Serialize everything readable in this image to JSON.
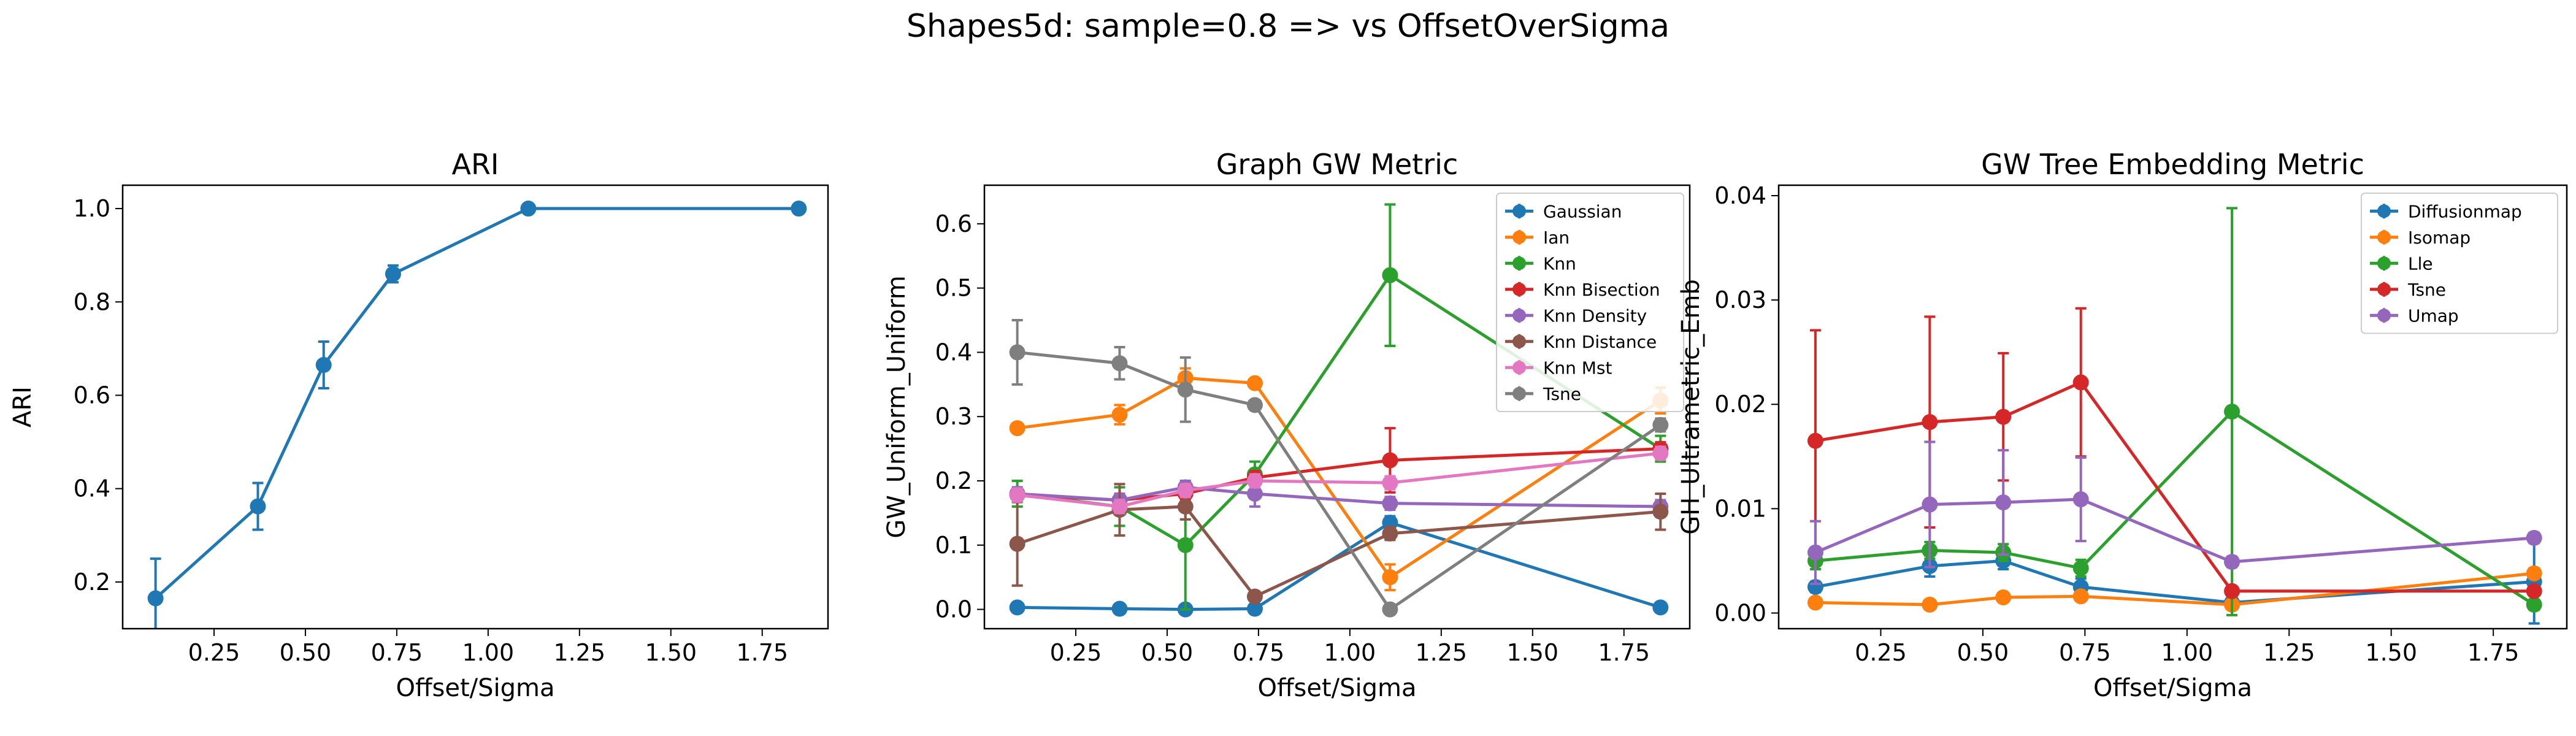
{
  "figure": {
    "suptitle": "Shapes5d: sample=0.8 => vs OffsetOverSigma"
  },
  "colors": {
    "blue": "#1f77b4",
    "orange": "#ff7f0e",
    "green": "#2ca02c",
    "red": "#d62728",
    "purple": "#9467bd",
    "brown": "#8c564b",
    "pink": "#e377c2",
    "gray": "#7f7f7f"
  },
  "chart_data": [
    {
      "type": "line",
      "title": "ARI",
      "xlabel": "Offset/Sigma",
      "ylabel": "ARI",
      "xlim": [
        0.0,
        1.93
      ],
      "ylim": [
        0.1,
        1.05
      ],
      "xticks": [
        0.25,
        0.5,
        0.75,
        1.0,
        1.25,
        1.5,
        1.75
      ],
      "xtick_labels": [
        "0.25",
        "0.50",
        "0.75",
        "1.00",
        "1.25",
        "1.50",
        "1.75"
      ],
      "yticks": [
        0.2,
        0.4,
        0.6,
        0.8,
        1.0
      ],
      "ytick_labels": [
        "0.2",
        "0.4",
        "0.6",
        "0.8",
        "1.0"
      ],
      "x": [
        0.09,
        0.37,
        0.55,
        0.74,
        1.11,
        1.85
      ],
      "series": [
        {
          "color": "#1f77b4",
          "values": [
            0.165,
            0.362,
            0.665,
            0.86,
            1.0,
            1.0
          ],
          "errors": [
            0.085,
            0.05,
            0.05,
            0.018,
            0,
            0
          ]
        }
      ]
    },
    {
      "type": "line",
      "title": "Graph GW Metric",
      "xlabel": "Offset/Sigma",
      "ylabel": "GW_Uniform_Uniform",
      "xlim": [
        0.0,
        1.93
      ],
      "ylim": [
        -0.03,
        0.66
      ],
      "xticks": [
        0.25,
        0.5,
        0.75,
        1.0,
        1.25,
        1.5,
        1.75
      ],
      "xtick_labels": [
        "0.25",
        "0.50",
        "0.75",
        "1.00",
        "1.25",
        "1.50",
        "1.75"
      ],
      "yticks": [
        0.0,
        0.1,
        0.2,
        0.3,
        0.4,
        0.5,
        0.6
      ],
      "ytick_labels": [
        "0.0",
        "0.1",
        "0.2",
        "0.3",
        "0.4",
        "0.5",
        "0.6"
      ],
      "legend_position": "upper right",
      "x": [
        0.09,
        0.37,
        0.55,
        0.74,
        1.11,
        1.85
      ],
      "series": [
        {
          "name": "Gaussian",
          "color": "#1f77b4",
          "values": [
            0.003,
            0.001,
            0.0,
            0.001,
            0.135,
            0.003
          ],
          "errors": [
            0,
            0,
            0,
            0,
            0.01,
            0
          ]
        },
        {
          "name": "Ian",
          "color": "#ff7f0e",
          "values": [
            0.282,
            0.303,
            0.36,
            0.352,
            0.05,
            0.325
          ],
          "errors": [
            0,
            0.015,
            0.015,
            0,
            0.02,
            0.02
          ]
        },
        {
          "name": "Knn",
          "color": "#2ca02c",
          "values": [
            0.18,
            0.16,
            0.1,
            0.21,
            0.52,
            0.25
          ],
          "errors": [
            0.02,
            0.03,
            0.1,
            0.02,
            0.11,
            0.02
          ]
        },
        {
          "name": "Knn Bisection",
          "color": "#d62728",
          "values": [
            0.178,
            0.17,
            0.18,
            0.205,
            0.232,
            0.25
          ],
          "errors": [
            0.01,
            0.01,
            0.01,
            0.01,
            0.05,
            0.01
          ]
        },
        {
          "name": "Knn Density",
          "color": "#9467bd",
          "values": [
            0.18,
            0.17,
            0.19,
            0.18,
            0.165,
            0.16
          ],
          "errors": [
            0.01,
            0.01,
            0.01,
            0.02,
            0.01,
            0.01
          ]
        },
        {
          "name": "Knn Distance",
          "color": "#8c564b",
          "values": [
            0.102,
            0.155,
            0.16,
            0.02,
            0.118,
            0.152
          ],
          "errors": [
            0.065,
            0.04,
            0.02,
            0.005,
            0.01,
            0.028
          ]
        },
        {
          "name": "Knn Mst",
          "color": "#e377c2",
          "values": [
            0.178,
            0.16,
            0.185,
            0.2,
            0.197,
            0.243
          ],
          "errors": [
            0.01,
            0.01,
            0.01,
            0.01,
            0.01,
            0.01
          ]
        },
        {
          "name": "Tsne",
          "color": "#7f7f7f",
          "values": [
            0.4,
            0.383,
            0.342,
            0.318,
            0.0,
            0.287
          ],
          "errors": [
            0.05,
            0.025,
            0.05,
            0.005,
            0.005,
            0.01
          ]
        }
      ]
    },
    {
      "type": "line",
      "title": "GW Tree Embedding Metric",
      "xlabel": "Offset/Sigma",
      "ylabel": "GH_Ultrametric_Emb",
      "xlim": [
        0.0,
        1.93
      ],
      "ylim": [
        -0.0015,
        0.041
      ],
      "xticks": [
        0.25,
        0.5,
        0.75,
        1.0,
        1.25,
        1.5,
        1.75
      ],
      "xtick_labels": [
        "0.25",
        "0.50",
        "0.75",
        "1.00",
        "1.25",
        "1.50",
        "1.75"
      ],
      "yticks": [
        0.0,
        0.01,
        0.02,
        0.03,
        0.04
      ],
      "ytick_labels": [
        "0.00",
        "0.01",
        "0.02",
        "0.03",
        "0.04"
      ],
      "legend_position": "upper right",
      "x": [
        0.09,
        0.37,
        0.55,
        0.74,
        1.11,
        1.85
      ],
      "series": [
        {
          "name": "Diffusionmap",
          "color": "#1f77b4",
          "values": [
            0.0025,
            0.0045,
            0.005,
            0.0025,
            0.001,
            0.003
          ],
          "errors": [
            0.0005,
            0.001,
            0.0008,
            0.0008,
            0.0003,
            0.004
          ]
        },
        {
          "name": "Isomap",
          "color": "#ff7f0e",
          "values": [
            0.001,
            0.0008,
            0.0015,
            0.0016,
            0.0008,
            0.0038
          ],
          "errors": [
            0.0003,
            0.0003,
            0.0004,
            0.0004,
            0.0003,
            0.0005
          ]
        },
        {
          "name": "Lle",
          "color": "#2ca02c",
          "values": [
            0.005,
            0.006,
            0.0058,
            0.0043,
            0.0193,
            0.0008
          ],
          "errors": [
            0.0008,
            0.0008,
            0.0008,
            0.0008,
            0.0195,
            0.0005
          ]
        },
        {
          "name": "Tsne",
          "color": "#d62728",
          "values": [
            0.0165,
            0.0183,
            0.0188,
            0.0221,
            0.0021,
            0.0021
          ],
          "errors": [
            0.0106,
            0.0101,
            0.0061,
            0.0071,
            0.0004,
            0.0004
          ]
        },
        {
          "name": "Umap",
          "color": "#9467bd",
          "values": [
            0.0058,
            0.0104,
            0.0106,
            0.0109,
            0.0049,
            0.0072
          ],
          "errors": [
            0.003,
            0.006,
            0.005,
            0.004,
            0.0005,
            0.0005
          ]
        }
      ]
    }
  ]
}
